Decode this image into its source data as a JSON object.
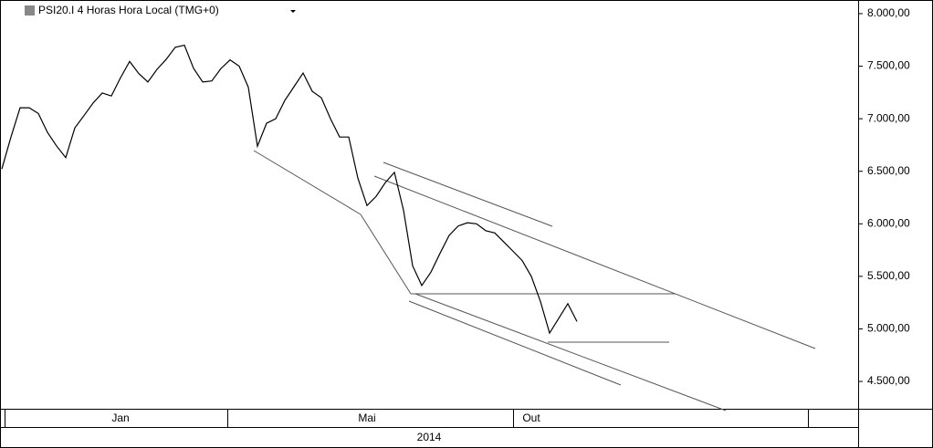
{
  "chart_data": {
    "type": "line",
    "title": "PSI20.I 4 Horas Hora Local (TMG+0)",
    "categories": [
      null,
      null,
      null,
      null,
      null,
      null,
      null,
      null,
      null,
      null,
      null,
      null,
      null,
      "Jan",
      null,
      null,
      null,
      null,
      null,
      null,
      null,
      null,
      null,
      null,
      null,
      null,
      null,
      null,
      null,
      null,
      null,
      null,
      null,
      null,
      null,
      null,
      null,
      null,
      null,
      null,
      "Mai",
      null,
      null,
      null,
      null,
      null,
      null,
      null,
      null,
      null,
      null,
      null,
      null,
      null,
      null,
      null,
      null,
      null,
      "Out",
      null,
      null,
      null,
      null,
      null
    ],
    "x_group_label": "2014",
    "series": [
      {
        "color": "#000000",
        "values": [
          6522,
          6826,
          7104,
          7104,
          7050,
          6870,
          6740,
          6630,
          6913,
          7030,
          7150,
          7245,
          7217,
          7390,
          7545,
          7430,
          7350,
          7470,
          7565,
          7680,
          7700,
          7480,
          7350,
          7360,
          7478,
          7560,
          7500,
          7300,
          6739,
          6957,
          7000,
          7174,
          7304,
          7435,
          7261,
          7200,
          7000,
          6826,
          6826,
          6435,
          6174,
          6261,
          6391,
          6490,
          6130,
          5600,
          5413,
          5540,
          5720,
          5890,
          5980,
          6010,
          6000,
          5935,
          5913,
          5826,
          5739,
          5650,
          5500,
          5261,
          4960,
          5100,
          5240,
          5070
        ]
      }
    ],
    "ylim": [
      4240,
      8130
    ],
    "yticks": [
      {
        "value": 4500,
        "label": "4.500,00"
      },
      {
        "value": 5000,
        "label": "5.000,00"
      },
      {
        "value": 5500,
        "label": "5.500,00"
      },
      {
        "value": 6000,
        "label": "6.000,00"
      },
      {
        "value": 6500,
        "label": "6.500,00"
      },
      {
        "value": 7000,
        "label": "7.000,00"
      },
      {
        "value": 7500,
        "label": "7.500,00"
      },
      {
        "value": 8000,
        "label": "8.000,00"
      }
    ],
    "grid": false
  }
}
